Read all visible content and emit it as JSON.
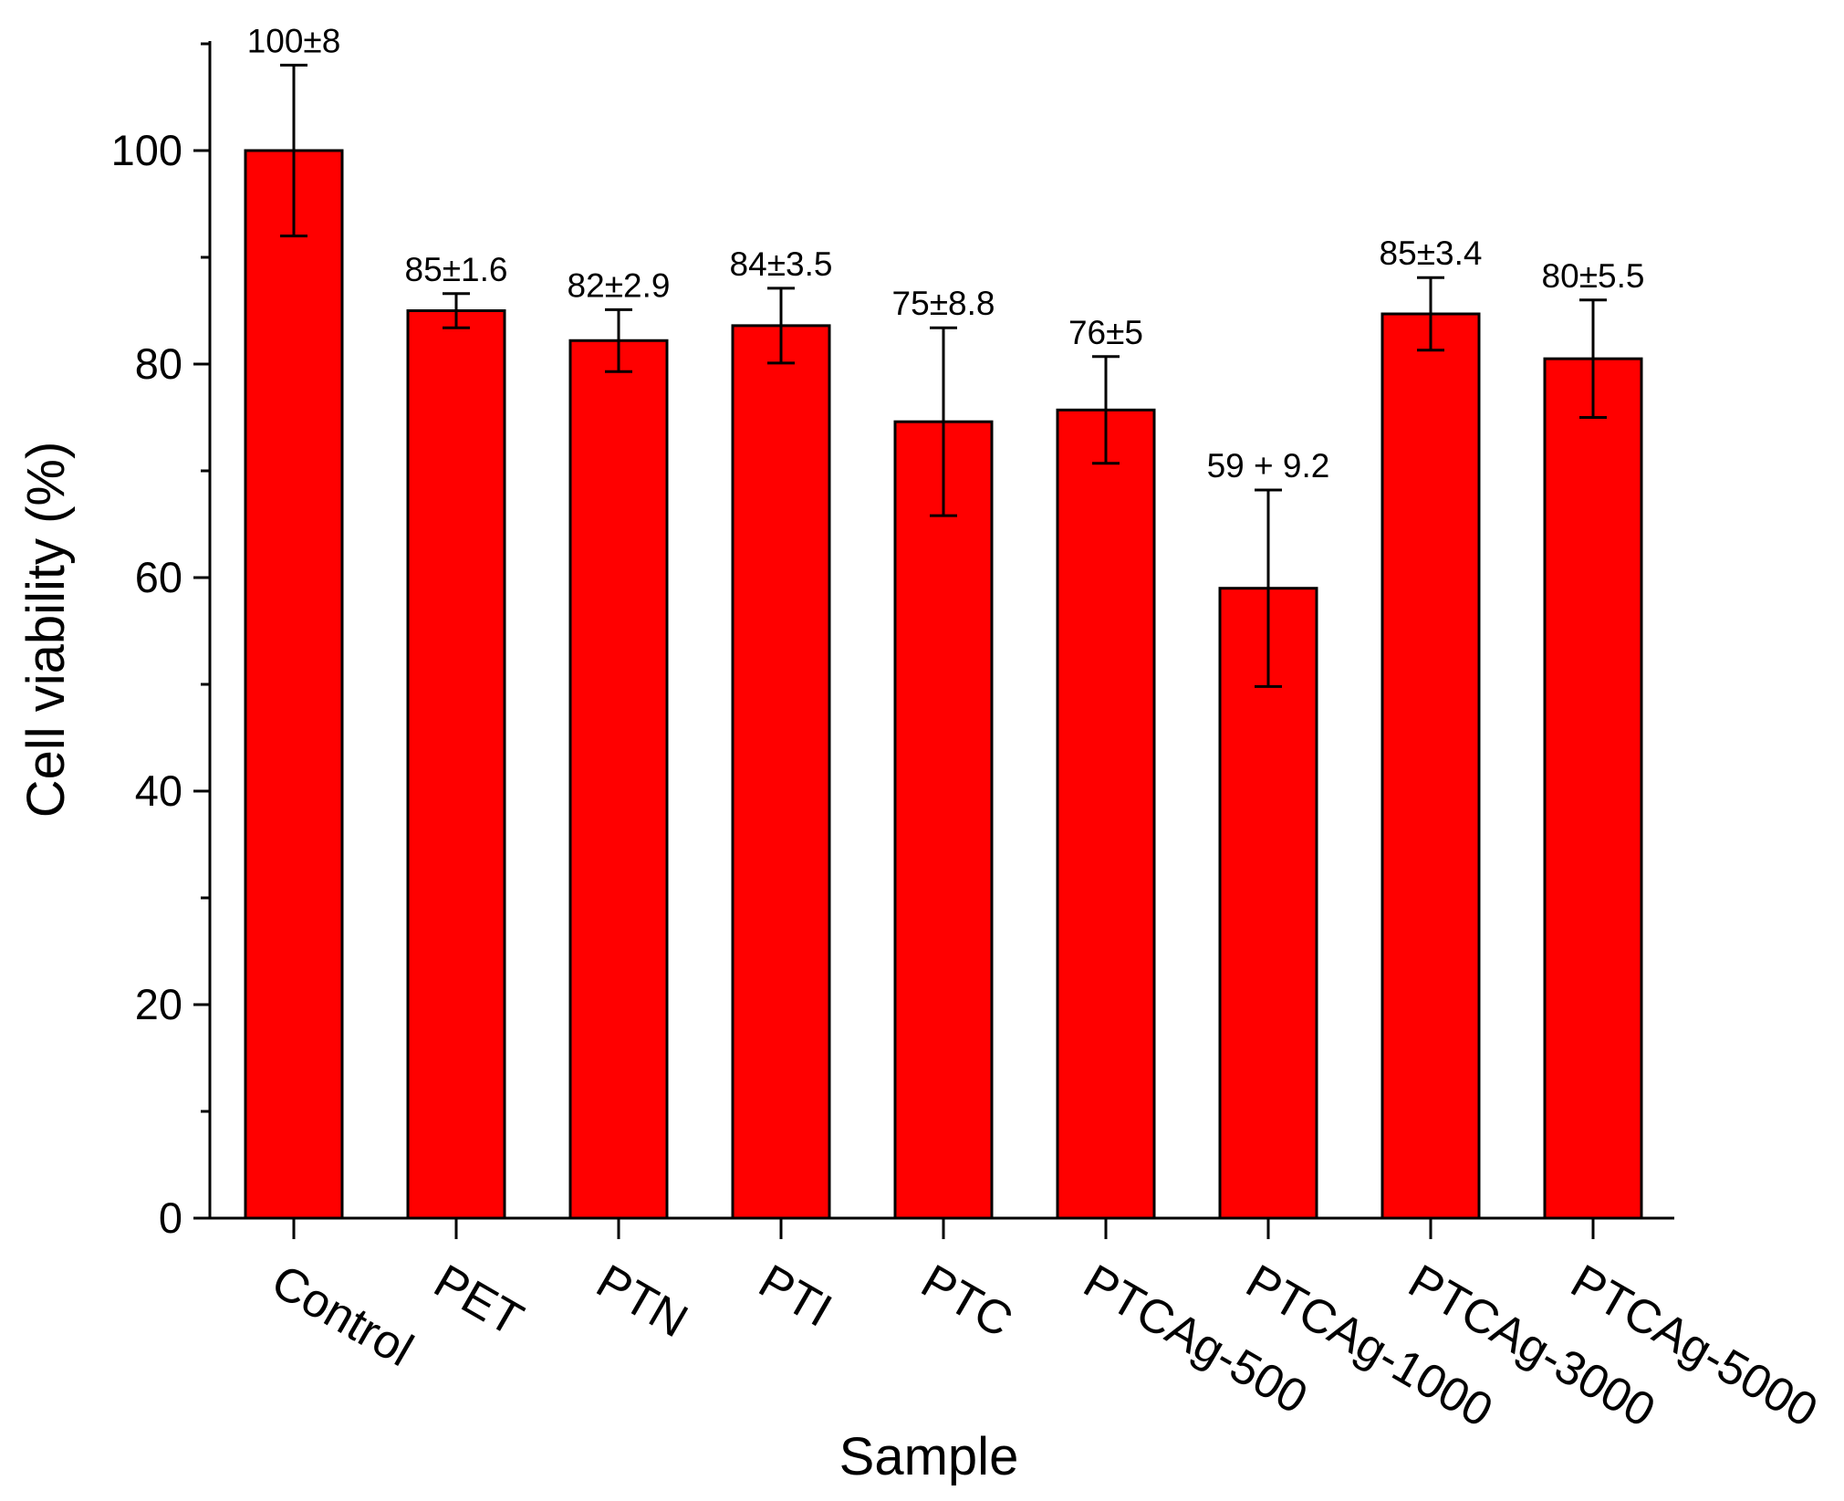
{
  "chart_data": {
    "type": "bar",
    "categories": [
      "Control",
      "PET",
      "PTN",
      "PTI",
      "PTC",
      "PTCAg-500",
      "PTCAg-1000",
      "PTCAg-3000",
      "PTCAg-5000"
    ],
    "values": [
      100,
      85,
      82.2,
      83.6,
      74.6,
      75.7,
      59,
      84.7,
      80.5
    ],
    "errors": [
      8,
      1.6,
      2.9,
      3.5,
      8.8,
      5,
      9.2,
      3.4,
      5.5
    ],
    "data_labels": [
      "100±8",
      "85±1.6",
      "82±2.9",
      "84±3.5",
      "75±8.8",
      "76±5",
      "59 + 9.2",
      "85±3.4",
      "80±5.5"
    ],
    "title": "",
    "xlabel": "Sample",
    "ylabel": "Cell viability (%)",
    "ylim": [
      0,
      110
    ],
    "yticks": [
      0,
      20,
      40,
      60,
      80,
      100
    ],
    "yticks_minor": [
      10,
      30,
      50,
      70,
      90,
      110
    ],
    "grid": false,
    "bar_color": "#ff0000",
    "edge_color": "#000000"
  }
}
